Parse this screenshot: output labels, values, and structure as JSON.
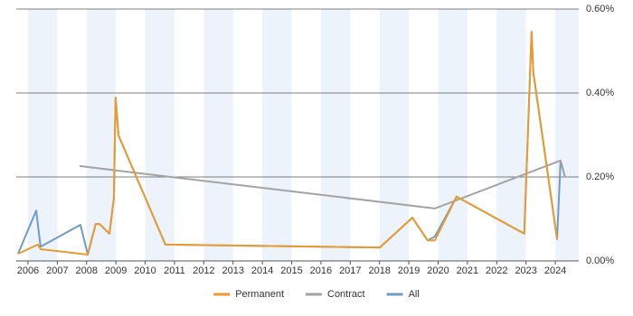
{
  "chart_data": {
    "type": "line",
    "x_is": "year",
    "xlim": [
      2005.6,
      2024.8
    ],
    "xticks": [
      2006,
      2007,
      2008,
      2009,
      2010,
      2011,
      2012,
      2013,
      2014,
      2015,
      2016,
      2017,
      2018,
      2019,
      2020,
      2021,
      2022,
      2023,
      2024
    ],
    "ylim": [
      0,
      0.6
    ],
    "yticks": [
      {
        "value": 0,
        "label": "0.00%"
      },
      {
        "value": 0.2,
        "label": "0.20%"
      },
      {
        "value": 0.4,
        "label": "0.40%"
      },
      {
        "value": 0.6,
        "label": "0.60%"
      }
    ],
    "grid": true,
    "legend": "bottom",
    "series": [
      {
        "name": "Permanent",
        "color": "#e99b2f",
        "x": [
          2005.66,
          2006.34,
          2006.43,
          2008.04,
          2008.31,
          2008.44,
          2008.78,
          2008.93,
          2008.99,
          2009.09,
          2010.69,
          2018.01,
          2019.12,
          2019.64,
          2019.89,
          2020.63,
          2022.94,
          2023.19,
          2023.25,
          2024.06
        ],
        "values": [
          0.017,
          0.039,
          0.028,
          0.015,
          0.088,
          0.088,
          0.065,
          0.148,
          0.389,
          0.299,
          0.039,
          0.032,
          0.103,
          0.049,
          0.049,
          0.153,
          0.065,
          0.546,
          0.449,
          0.052
        ]
      },
      {
        "name": "Contract",
        "color": "#a3a3a3",
        "x": [
          2007.76,
          2019.89,
          2024.18,
          2024.33
        ],
        "values": [
          0.226,
          0.125,
          0.239,
          0.2
        ]
      },
      {
        "name": "All",
        "color": "#6f9cc4",
        "x": [
          2005.66,
          2006.28,
          2006.43,
          2007.79,
          2008.04,
          2008.31,
          2008.44,
          2008.78,
          2008.93,
          2008.99,
          2009.09,
          2010.69,
          2018.01,
          2019.12,
          2019.64,
          2019.89,
          2020.63,
          2022.94,
          2023.19,
          2023.25,
          2024.06,
          2024.18,
          2024.33
        ],
        "values": [
          0.017,
          0.12,
          0.034,
          0.086,
          0.015,
          0.088,
          0.088,
          0.065,
          0.148,
          0.389,
          0.299,
          0.039,
          0.032,
          0.103,
          0.049,
          0.058,
          0.153,
          0.065,
          0.546,
          0.449,
          0.052,
          0.239,
          0.2
        ]
      }
    ]
  }
}
